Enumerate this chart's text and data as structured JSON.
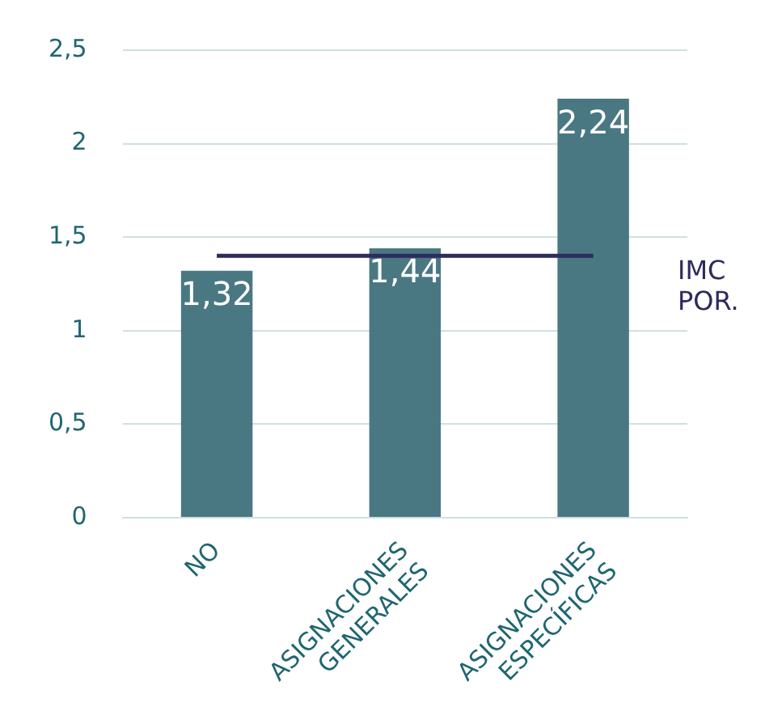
{
  "chart_data": {
    "type": "bar",
    "categories": [
      "NO",
      "ASIGNACIONES GENERALES",
      "ASIGNACIONES ESPECÍFICAS"
    ],
    "values": [
      1.32,
      1.44,
      2.24
    ],
    "value_labels": [
      "1,32",
      "1,44",
      "2,24"
    ],
    "color": "#4a7882",
    "ylim": [
      0,
      2.5
    ],
    "yticks": [
      0,
      {
        "value": 0.5,
        "label": "0,5"
      },
      1,
      {
        "value": 1.5,
        "label": "1,5"
      },
      2,
      {
        "value": 2.5,
        "label": "2,5"
      }
    ],
    "grid": "y",
    "ref_lines": [
      {
        "axis": "y",
        "value": 1.4,
        "label": "IMC POR.",
        "color": "#2e2a5e"
      }
    ]
  }
}
